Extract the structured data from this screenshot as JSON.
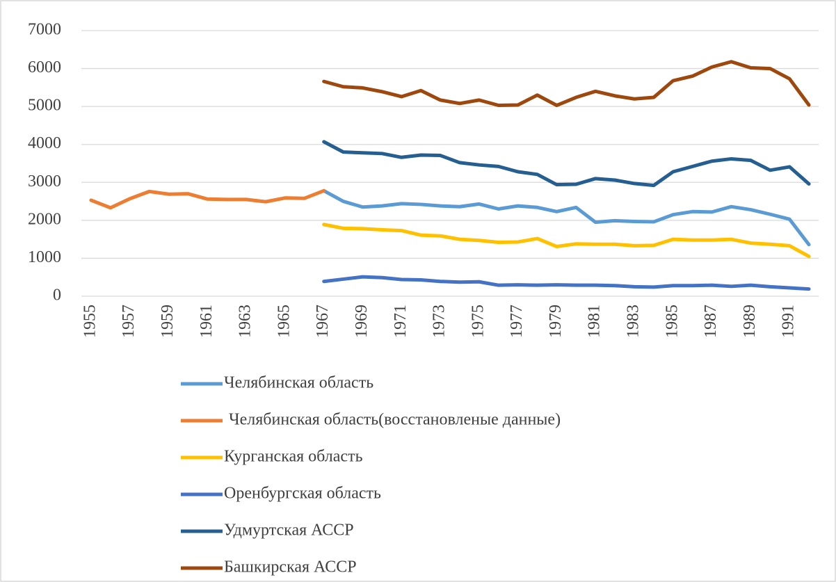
{
  "chart_data": {
    "type": "line",
    "categories": [
      "1955",
      null,
      "1957",
      null,
      "1959",
      null,
      "1961",
      null,
      "1963",
      null,
      "1965",
      null,
      "1967",
      null,
      "1969",
      null,
      "1971",
      null,
      "1973",
      null,
      "1975",
      null,
      "1977",
      null,
      "1979",
      null,
      "1981",
      null,
      "1983",
      null,
      "1985",
      null,
      "1987",
      null,
      "1989",
      null,
      "1991",
      null
    ],
    "ylim": [
      0,
      7000
    ],
    "yticks": [
      0,
      1000,
      2000,
      3000,
      4000,
      5000,
      6000,
      7000
    ],
    "grid": true,
    "legend": "bottom",
    "series": [
      {
        "name": "Челябинская область",
        "color": "#5b9bd5",
        "values": [
          null,
          null,
          null,
          null,
          null,
          null,
          null,
          null,
          null,
          null,
          null,
          null,
          2780,
          2500,
          2350,
          2380,
          2440,
          2420,
          2380,
          2360,
          2430,
          2300,
          2380,
          2340,
          2230,
          2340,
          1950,
          1990,
          1970,
          1960,
          2150,
          2230,
          2220,
          2360,
          2280,
          2160,
          2030,
          1360
        ]
      },
      {
        "name": "Челябинская область(восстановленые данные)",
        "color": "#ed7d31",
        "values": [
          2530,
          2330,
          2570,
          2760,
          2690,
          2700,
          2560,
          2550,
          2550,
          2490,
          2590,
          2580,
          2780,
          null,
          null,
          null,
          null,
          null,
          null,
          null,
          null,
          null,
          null,
          null,
          null,
          null,
          null,
          null,
          null,
          null,
          null,
          null,
          null,
          null,
          null,
          null,
          null,
          null
        ]
      },
      {
        "name": "Курганская область",
        "color": "#ffc000",
        "values": [
          null,
          null,
          null,
          null,
          null,
          null,
          null,
          null,
          null,
          null,
          null,
          null,
          1890,
          1790,
          1780,
          1750,
          1730,
          1610,
          1590,
          1500,
          1470,
          1420,
          1430,
          1520,
          1310,
          1380,
          1370,
          1370,
          1330,
          1340,
          1500,
          1480,
          1480,
          1500,
          1400,
          1370,
          1330,
          1050
        ]
      },
      {
        "name": "Оренбургская область",
        "color": "#4472c4",
        "values": [
          null,
          null,
          null,
          null,
          null,
          null,
          null,
          null,
          null,
          null,
          null,
          null,
          390,
          450,
          510,
          490,
          440,
          430,
          390,
          370,
          380,
          290,
          300,
          290,
          300,
          290,
          290,
          280,
          250,
          240,
          280,
          280,
          290,
          260,
          290,
          250,
          220,
          190
        ]
      },
      {
        "name": "Удмуртская АССР",
        "color": "#255e91",
        "values": [
          null,
          null,
          null,
          null,
          null,
          null,
          null,
          null,
          null,
          null,
          null,
          null,
          4070,
          3800,
          3780,
          3760,
          3660,
          3720,
          3710,
          3520,
          3460,
          3420,
          3280,
          3210,
          2940,
          2950,
          3100,
          3060,
          2970,
          2920,
          3280,
          3420,
          3560,
          3620,
          3580,
          3320,
          3410,
          2960
        ]
      },
      {
        "name": "Башкирская АССР",
        "color": "#9e480e",
        "values": [
          null,
          null,
          null,
          null,
          null,
          null,
          null,
          null,
          null,
          null,
          null,
          null,
          5660,
          5520,
          5490,
          5390,
          5260,
          5420,
          5170,
          5080,
          5170,
          5030,
          5040,
          5300,
          5030,
          5240,
          5400,
          5280,
          5200,
          5240,
          5680,
          5800,
          6040,
          6180,
          6020,
          6000,
          5730,
          5040
        ]
      }
    ]
  }
}
